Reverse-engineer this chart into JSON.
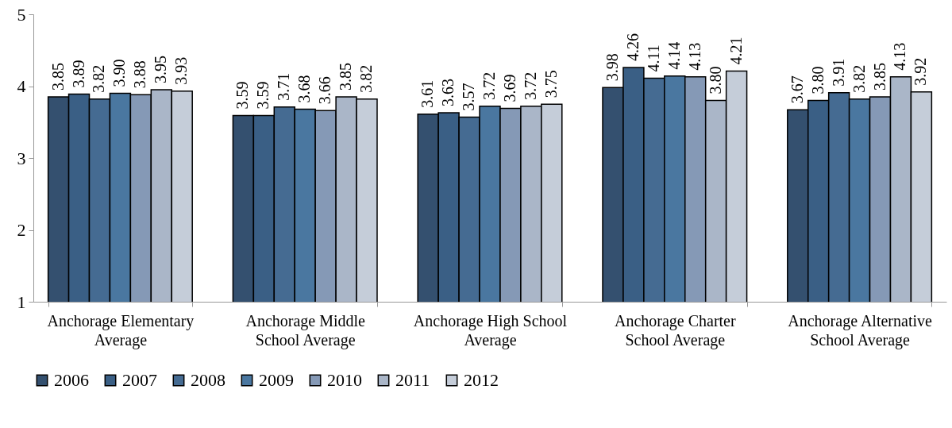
{
  "chart_data": {
    "type": "bar",
    "categories": [
      "Anchorage Elementary Average",
      "Anchorage Middle School Average",
      "Anchorage High School Average",
      "Anchorage Charter School Average",
      "Anchorage Alternative School Average"
    ],
    "series": [
      {
        "name": "2006",
        "color": "#34506f",
        "values": [
          3.85,
          3.59,
          3.61,
          3.98,
          3.67
        ],
        "value_labels": [
          "3.85",
          "3.59",
          "3.61",
          "3.98",
          "3.67"
        ]
      },
      {
        "name": "2007",
        "color": "#3a5f85",
        "values": [
          3.89,
          3.59,
          3.63,
          4.26,
          3.8
        ],
        "value_labels": [
          "3.89",
          "3.59",
          "3.63",
          "4.26",
          "3.80"
        ]
      },
      {
        "name": "2008",
        "color": "#456b92",
        "values": [
          3.82,
          3.71,
          3.57,
          4.11,
          3.91
        ],
        "value_labels": [
          "3.82",
          "3.71",
          "3.57",
          "4.11",
          "3.91"
        ]
      },
      {
        "name": "2009",
        "color": "#4a77a0",
        "values": [
          3.9,
          3.68,
          3.72,
          4.14,
          3.82
        ],
        "value_labels": [
          "3.90",
          "3.68",
          "3.72",
          "4.14",
          "3.82"
        ]
      },
      {
        "name": "2010",
        "color": "#8599b6",
        "values": [
          3.88,
          3.66,
          3.69,
          4.13,
          3.85
        ],
        "value_labels": [
          "3.88",
          "3.66",
          "3.69",
          "4.13",
          "3.85"
        ]
      },
      {
        "name": "2011",
        "color": "#aab6c8",
        "values": [
          3.95,
          3.85,
          3.72,
          3.8,
          4.13
        ],
        "value_labels": [
          "3.95",
          "3.85",
          "3.72",
          "3.80",
          "4.13"
        ]
      },
      {
        "name": "2012",
        "color": "#c5cdd9",
        "values": [
          3.93,
          3.82,
          3.75,
          4.21,
          3.92
        ],
        "value_labels": [
          "3.93",
          "3.82",
          "3.75",
          "4.21",
          "3.92"
        ]
      }
    ],
    "ylim": [
      1,
      5
    ],
    "yticks": [
      1,
      2,
      3,
      4,
      5
    ],
    "legend": "bottom",
    "grid": false
  }
}
